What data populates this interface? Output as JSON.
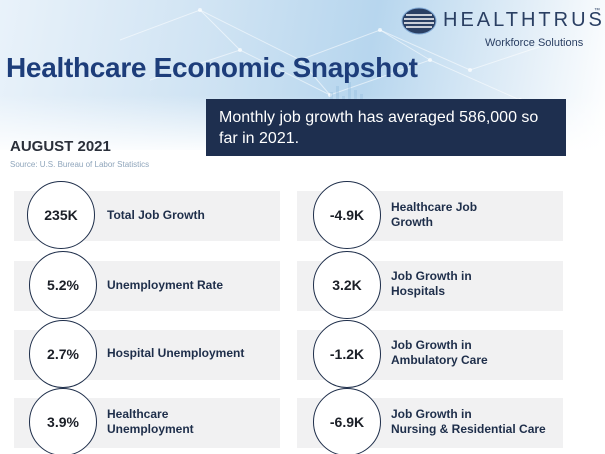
{
  "brand": {
    "name": "HEALTHTRUST",
    "tm": "™",
    "tagline": "Workforce Solutions"
  },
  "title": "Healthcare Economic Snapshot",
  "callout": "Monthly job growth has averaged 586,000 so far in 2021.",
  "period": "AUGUST 2021",
  "source": "Source: U.S. Bureau of Labor Statistics",
  "colors": {
    "title": "#1d3d7a",
    "callout_bg": "#1e2f4f",
    "card_bg": "#f1f1f2",
    "circle_border": "#1e2e4a"
  },
  "stats_left": [
    {
      "value": "235K",
      "label": "Total Job Growth"
    },
    {
      "value": "5.2%",
      "label": "Unemployment Rate"
    },
    {
      "value": "2.7%",
      "label": "Hospital Unemployment"
    },
    {
      "value": "3.9%",
      "label_line1": "Healthcare",
      "label_line2": "Unemployment"
    }
  ],
  "stats_right": [
    {
      "value": "-4.9K",
      "label_line1": "Healthcare Job",
      "label_line2": "Growth"
    },
    {
      "value": "3.2K",
      "label_line1": "Job Growth in",
      "label_line2": "Hospitals"
    },
    {
      "value": "-1.2K",
      "label_line1": "Job Growth in",
      "label_line2": "Ambulatory Care"
    },
    {
      "value": "-6.9K",
      "label_line1": "Job Growth in",
      "label_line2": "Nursing & Residential Care"
    }
  ]
}
